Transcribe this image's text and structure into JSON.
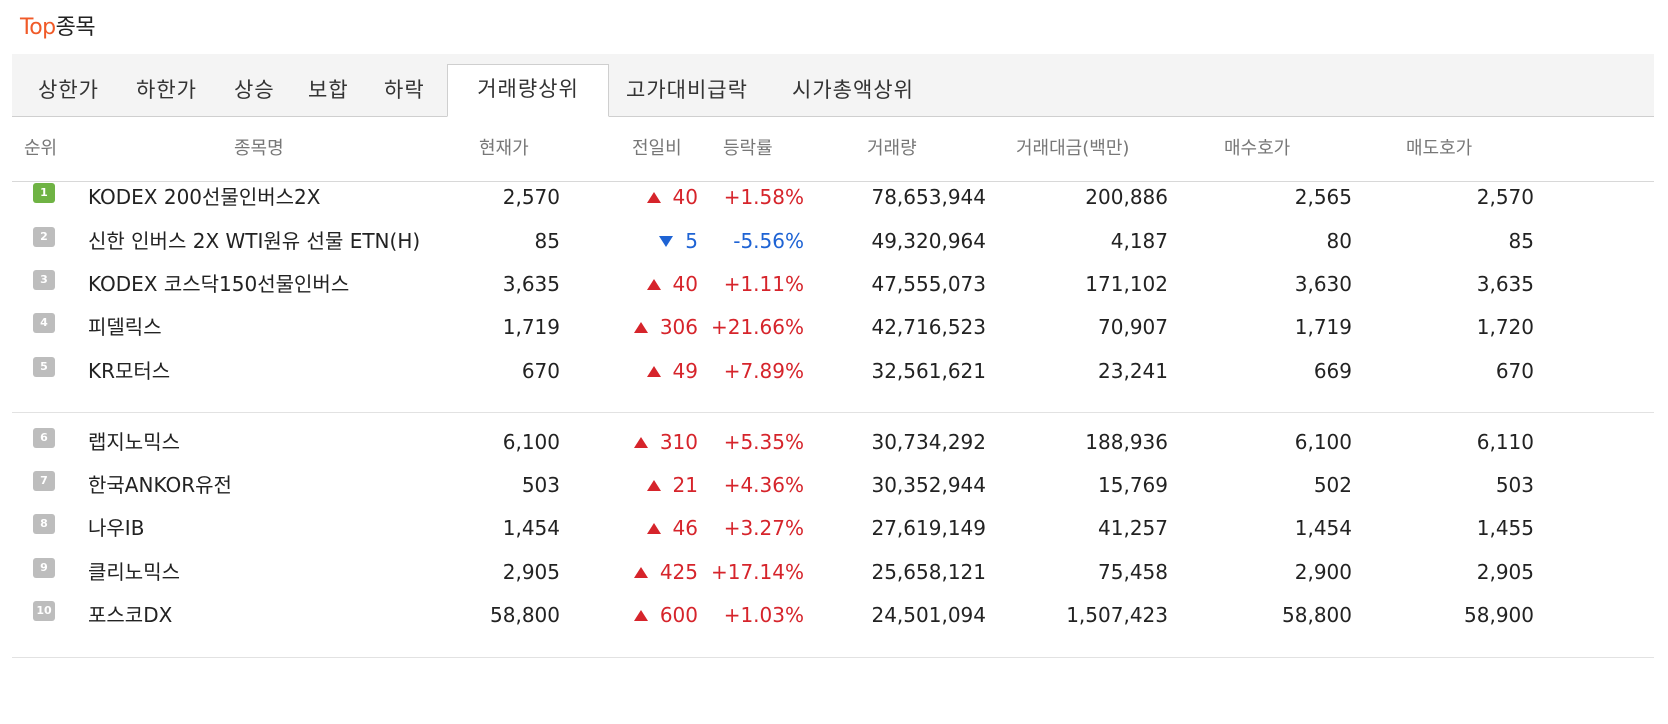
{
  "header": {
    "title_accent": "Top",
    "title_rest": "종목"
  },
  "tabs": [
    {
      "label": "상한가",
      "active": false
    },
    {
      "label": "하한가",
      "active": false
    },
    {
      "label": "상승",
      "active": false
    },
    {
      "label": "보합",
      "active": false
    },
    {
      "label": "하락",
      "active": false
    },
    {
      "label": "거래량상위",
      "active": true
    },
    {
      "label": "고가대비급락",
      "active": false
    },
    {
      "label": "시가총액상위",
      "active": false
    }
  ],
  "columns": [
    "순위",
    "종목명",
    "현재가",
    "전일비",
    "등락률",
    "거래량",
    "거래대금(백만)",
    "매수호가",
    "매도호가"
  ],
  "colors": {
    "accent": "#f05a28",
    "up": "#d6242b",
    "down": "#1e63d4",
    "rank_top": "#6fb344",
    "rank": "#bdbdbd"
  },
  "rows": [
    {
      "rank": "1",
      "name": "KODEX 200선물인버스2X",
      "price": "2,570",
      "dir": "up",
      "change": "40",
      "rate": "+1.58%",
      "volume": "78,653,944",
      "amount": "200,886",
      "bid": "2,565",
      "ask": "2,570"
    },
    {
      "rank": "2",
      "name": "신한 인버스 2X WTI원유 선물 ETN(H)",
      "price": "85",
      "dir": "down",
      "change": "5",
      "rate": "-5.56%",
      "volume": "49,320,964",
      "amount": "4,187",
      "bid": "80",
      "ask": "85"
    },
    {
      "rank": "3",
      "name": "KODEX 코스닥150선물인버스",
      "price": "3,635",
      "dir": "up",
      "change": "40",
      "rate": "+1.11%",
      "volume": "47,555,073",
      "amount": "171,102",
      "bid": "3,630",
      "ask": "3,635"
    },
    {
      "rank": "4",
      "name": "피델릭스",
      "price": "1,719",
      "dir": "up",
      "change": "306",
      "rate": "+21.66%",
      "volume": "42,716,523",
      "amount": "70,907",
      "bid": "1,719",
      "ask": "1,720"
    },
    {
      "rank": "5",
      "name": "KR모터스",
      "price": "670",
      "dir": "up",
      "change": "49",
      "rate": "+7.89%",
      "volume": "32,561,621",
      "amount": "23,241",
      "bid": "669",
      "ask": "670"
    },
    {
      "rank": "6",
      "name": "랩지노믹스",
      "price": "6,100",
      "dir": "up",
      "change": "310",
      "rate": "+5.35%",
      "volume": "30,734,292",
      "amount": "188,936",
      "bid": "6,100",
      "ask": "6,110"
    },
    {
      "rank": "7",
      "name": "한국ANKOR유전",
      "price": "503",
      "dir": "up",
      "change": "21",
      "rate": "+4.36%",
      "volume": "30,352,944",
      "amount": "15,769",
      "bid": "502",
      "ask": "503"
    },
    {
      "rank": "8",
      "name": "나우IB",
      "price": "1,454",
      "dir": "up",
      "change": "46",
      "rate": "+3.27%",
      "volume": "27,619,149",
      "amount": "41,257",
      "bid": "1,454",
      "ask": "1,455"
    },
    {
      "rank": "9",
      "name": "클리노믹스",
      "price": "2,905",
      "dir": "up",
      "change": "425",
      "rate": "+17.14%",
      "volume": "25,658,121",
      "amount": "75,458",
      "bid": "2,900",
      "ask": "2,905"
    },
    {
      "rank": "10",
      "name": "포스코DX",
      "price": "58,800",
      "dir": "up",
      "change": "600",
      "rate": "+1.03%",
      "volume": "24,501,094",
      "amount": "1,507,423",
      "bid": "58,800",
      "ask": "58,900"
    }
  ]
}
